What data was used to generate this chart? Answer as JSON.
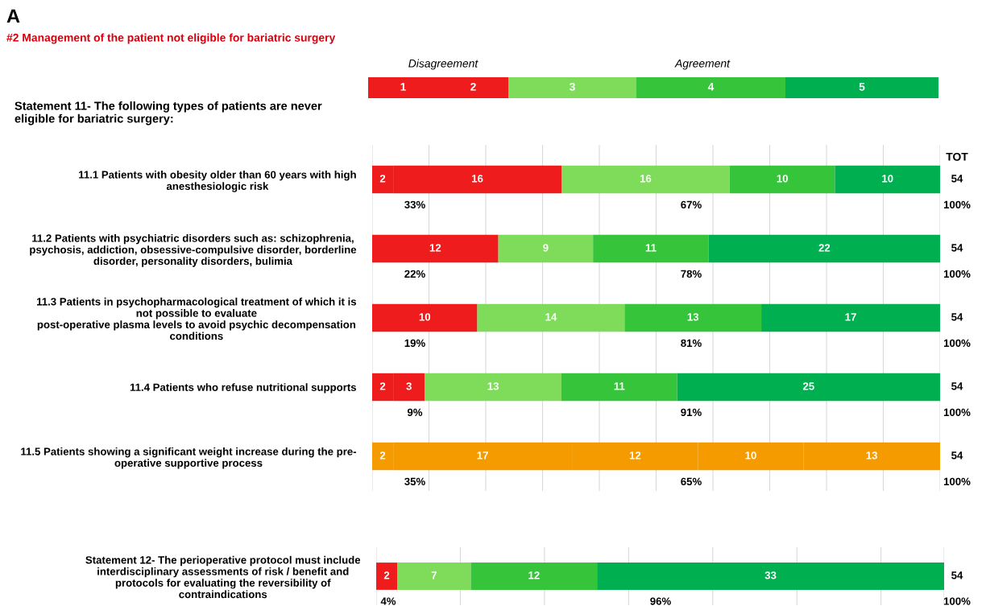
{
  "chart_data": [
    {
      "type": "bar",
      "orientation": "horizontal",
      "stacked": true,
      "title": "A",
      "subtitle": "#2 Management of the patient not eligible for bariatric surgery",
      "categories": [
        "11.1 Patients with obesity older than 60 years with high\nanesthesiologic risk",
        "11.2 Patients with psychiatric disorders such as: schizophrenia,\npsychosis, addiction, obsessive-compulsive disorder, borderline\ndisorder, personality disorders, bulimia",
        "11.3 Patients in psychopharmacological treatment of which it is\nnot possible to evaluate\npost-operative plasma levels to avoid psychic decompensation\nconditions",
        "11.4 Patients who refuse nutritional supports",
        "11.5 Patients showing a significant weight increase during the pre-\noperative supportive process"
      ],
      "series": [
        {
          "name": "1",
          "color": "#ee1c1c",
          "colors": [
            "#ee1c1c",
            "#ee1c1c",
            "#ee1c1c",
            "#ee1c1c",
            "#f59b00"
          ],
          "values": [
            2,
            null,
            null,
            2,
            2
          ]
        },
        {
          "name": "2",
          "color": "#ee1c1c",
          "colors": [
            "#ee1c1c",
            "#ee1c1c",
            "#ee1c1c",
            "#ee1c1c",
            "#f59b00"
          ],
          "values": [
            16,
            12,
            10,
            3,
            17
          ]
        },
        {
          "name": "3",
          "color": "#7fdc5a",
          "colors": [
            "#7fdc5a",
            "#7fdc5a",
            "#7fdc5a",
            "#7fdc5a",
            "#f59b00"
          ],
          "values": [
            16,
            9,
            14,
            13,
            12
          ]
        },
        {
          "name": "4",
          "color": "#36c43a",
          "colors": [
            "#36c43a",
            "#36c43a",
            "#36c43a",
            "#36c43a",
            "#f59b00"
          ],
          "values": [
            10,
            11,
            13,
            11,
            10
          ]
        },
        {
          "name": "5",
          "color": "#00b050",
          "colors": [
            "#00b050",
            "#00b050",
            "#00b050",
            "#00b050",
            "#f59b00"
          ],
          "values": [
            10,
            22,
            17,
            25,
            13
          ]
        }
      ],
      "data_labels": true,
      "totals": [
        "54",
        "54",
        "54",
        "54",
        "54"
      ],
      "xlim": [
        0,
        54
      ],
      "xticks": [
        {
          "value": 0,
          "label": null
        },
        {
          "value": 5.4,
          "label": null
        },
        {
          "value": 10.8,
          "label": null
        },
        {
          "value": 16.2,
          "label": null
        },
        {
          "value": 21.6,
          "label": null
        },
        {
          "value": 27,
          "label": null
        },
        {
          "value": 32.4,
          "label": null
        },
        {
          "value": 37.8,
          "label": null
        },
        {
          "value": 43.2,
          "label": null
        },
        {
          "value": 48.6,
          "label": null
        },
        {
          "value": 54,
          "label": null
        }
      ],
      "grid": "x",
      "tick_labels": "y",
      "legend": "top",
      "annotations": [
        "Disagreement",
        "Agreement",
        "Statement 11- The following types of patients are never\neligible for bariatric surgery:",
        "TOT",
        "33%",
        "67%",
        "100%",
        "22%",
        "78%",
        "100%",
        "19%",
        "81%",
        "100%",
        "9%",
        "91%",
        "100%",
        "35%",
        "65%",
        "100%"
      ]
    },
    {
      "type": "bar",
      "orientation": "horizontal",
      "stacked": true,
      "categories": [
        "Statement 12- The perioperative protocol must include\ninterdisciplinary assessments of risk / benefit and\nprotocols for evaluating the reversibility of\ncontraindications"
      ],
      "series": [
        {
          "color": "#ee1c1c",
          "values": [
            2
          ]
        },
        {
          "color": "#ee1c1c",
          "values": [
            null
          ]
        },
        {
          "color": "#7fdc5a",
          "values": [
            7
          ]
        },
        {
          "color": "#36c43a",
          "values": [
            12
          ]
        },
        {
          "color": "#00b050",
          "values": [
            33
          ]
        }
      ],
      "data_labels": true,
      "totals": [
        "54"
      ],
      "xlim": [
        0,
        54
      ],
      "xticks": [
        {
          "value": 0,
          "label": null
        },
        {
          "value": 8,
          "label": null
        },
        {
          "value": 16,
          "label": null
        },
        {
          "value": 24,
          "label": null
        },
        {
          "value": 32,
          "label": null
        },
        {
          "value": 40,
          "label": null
        },
        {
          "value": 48,
          "label": null
        },
        {
          "value": 54,
          "label": null
        }
      ],
      "grid": "x",
      "tick_labels": "y",
      "annotations": [
        "4%",
        "96%",
        "100%"
      ]
    }
  ]
}
